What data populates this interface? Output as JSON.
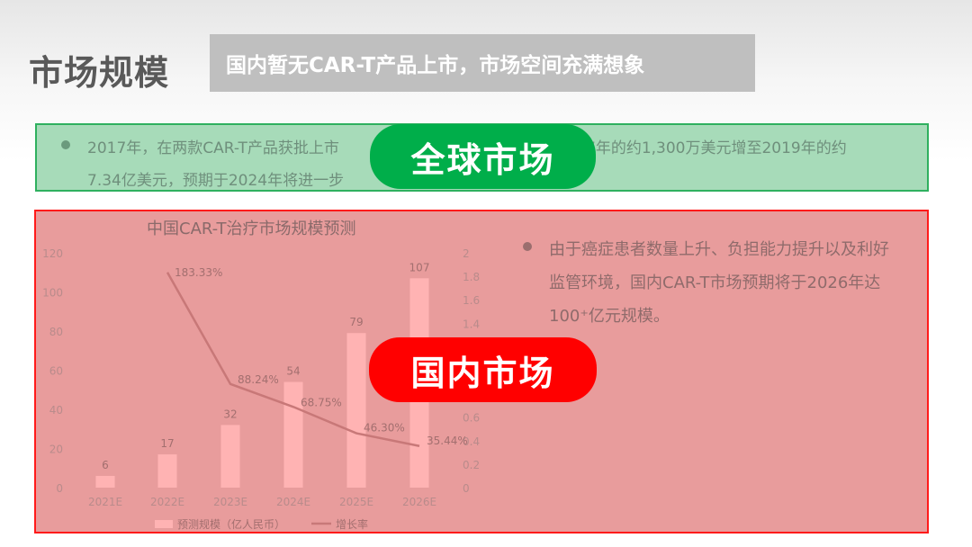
{
  "header": {
    "title": "市场规模",
    "banner": "国内暂无CAR-T产品上市，市场空间充满想象"
  },
  "global": {
    "line1_left": "2017年，在两款CAR-T产品获批上市",
    "line1_right": "7年的约1,300万美元增至2019年的约",
    "line2_left": "7.34亿美元，预期于2024年将进一步",
    "label": "全球市场",
    "bullet_color": "#6b9a7d"
  },
  "domestic": {
    "label": "国内市场",
    "text_line1": "由于癌症患者数量上升、负担能力提升以及利好",
    "text_line2": "监管环境，国内CAR-T市场预期将于2026年达",
    "text_line3": "100⁺亿元规模。",
    "bullet_color": "#9a6e6e"
  },
  "colors": {
    "bar": "#ffb3b3",
    "line": "#c87878",
    "axis_text": "#b98b8b",
    "label_text": "#a36f6f"
  },
  "chart_data": {
    "type": "bar",
    "title": "中国CAR-T治疗市场规模预测",
    "categories": [
      "2021E",
      "2022E",
      "2023E",
      "2024E",
      "2025E",
      "2026E"
    ],
    "series": [
      {
        "name": "预测规模（亿人民币）",
        "type": "bar",
        "axis": "left",
        "values": [
          6,
          17,
          32,
          54,
          79,
          107
        ]
      },
      {
        "name": "增长率",
        "type": "line",
        "axis": "right",
        "values": [
          null,
          1.8333,
          0.8824,
          0.6875,
          0.463,
          0.3544
        ],
        "labels": [
          "",
          "183.33%",
          "88.24%",
          "68.75%",
          "46.30%",
          "35.44%"
        ]
      }
    ],
    "y_left": {
      "min": 0,
      "max": 120,
      "ticks": [
        0,
        20,
        40,
        60,
        80,
        100,
        120
      ]
    },
    "y_right": {
      "min": 0,
      "max": 2,
      "ticks": [
        "0",
        "0.2",
        "0.4",
        "0.6",
        "0.8",
        "1",
        "1.2",
        "1.4",
        "1.6",
        "1.8",
        "2"
      ]
    },
    "legend": [
      "预测规模（亿人民币）",
      "增长率"
    ]
  }
}
